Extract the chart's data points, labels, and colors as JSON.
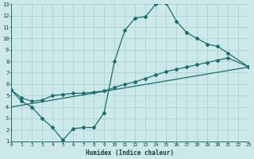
{
  "xlabel": "Humidex (Indice chaleur)",
  "bg_color": "#cce8e8",
  "grid_color": "#aad4d4",
  "line_color": "#1a6e6e",
  "series1_x": [
    0,
    1,
    2,
    3,
    4,
    5,
    6,
    7,
    8,
    9,
    10,
    11,
    12,
    13,
    14,
    15,
    16,
    17,
    18,
    19,
    20,
    21,
    23
  ],
  "series1_y": [
    5.5,
    4.5,
    4.0,
    3.0,
    2.2,
    1.1,
    2.1,
    2.2,
    2.2,
    3.5,
    8.0,
    10.7,
    11.8,
    11.9,
    13.0,
    13.1,
    11.5,
    10.5,
    10.0,
    9.5,
    9.3,
    8.7,
    7.5
  ],
  "series2_x": [
    0,
    1,
    2,
    3,
    4,
    5,
    6,
    7,
    8,
    9,
    10,
    11,
    12,
    13,
    14,
    15,
    16,
    17,
    18,
    19,
    20,
    21,
    23
  ],
  "series2_y": [
    5.5,
    4.8,
    4.5,
    4.6,
    5.0,
    5.1,
    5.2,
    5.2,
    5.3,
    5.4,
    5.7,
    6.0,
    6.2,
    6.5,
    6.8,
    7.1,
    7.3,
    7.5,
    7.7,
    7.9,
    8.1,
    8.3,
    7.5
  ],
  "series3_x": [
    0,
    23
  ],
  "series3_y": [
    4.0,
    7.5
  ],
  "ylim": [
    1,
    13
  ],
  "xlim": [
    0,
    23
  ],
  "yticks": [
    1,
    2,
    3,
    4,
    5,
    6,
    7,
    8,
    9,
    10,
    11,
    12,
    13
  ],
  "xticks": [
    0,
    1,
    2,
    3,
    4,
    5,
    6,
    7,
    8,
    9,
    10,
    11,
    12,
    13,
    14,
    15,
    16,
    17,
    18,
    19,
    20,
    21,
    22,
    23
  ]
}
